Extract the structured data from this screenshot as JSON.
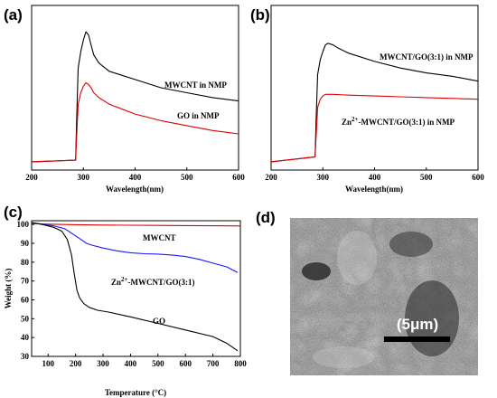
{
  "panel_labels": [
    "(a)",
    "(b)",
    "(c)",
    "(d)"
  ],
  "chart_data": [
    {
      "type": "line",
      "panel": "(a)",
      "xlabel": "Wavelength(nm)",
      "ylabel": "",
      "xlim": [
        200,
        600
      ],
      "ylim": [
        0,
        1
      ],
      "xticks": [
        200,
        300,
        400,
        500,
        600
      ],
      "grid": false,
      "series": [
        {
          "name": "MWCNT in NMP",
          "color": "#000000",
          "x": [
            200,
            285,
            287,
            290,
            295,
            300,
            305,
            310,
            315,
            320,
            330,
            350,
            400,
            450,
            500,
            550,
            600
          ],
          "y": [
            0.05,
            0.06,
            0.3,
            0.62,
            0.72,
            0.79,
            0.84,
            0.82,
            0.76,
            0.7,
            0.65,
            0.6,
            0.55,
            0.5,
            0.47,
            0.44,
            0.42
          ]
        },
        {
          "name": "GO in NMP",
          "color": "#e00000",
          "x": [
            200,
            285,
            287,
            290,
            295,
            300,
            305,
            310,
            315,
            320,
            330,
            350,
            400,
            450,
            500,
            550,
            600
          ],
          "y": [
            0.05,
            0.06,
            0.2,
            0.4,
            0.47,
            0.51,
            0.53,
            0.52,
            0.5,
            0.47,
            0.44,
            0.4,
            0.34,
            0.3,
            0.27,
            0.24,
            0.22
          ]
        }
      ],
      "annotations": [
        "MWCNT in NMP",
        "GO in NMP"
      ]
    },
    {
      "type": "line",
      "panel": "(b)",
      "xlabel": "Wavelength(nm)",
      "ylabel": "",
      "xlim": [
        200,
        600
      ],
      "ylim": [
        0,
        1
      ],
      "xticks": [
        200,
        300,
        400,
        500,
        600
      ],
      "grid": false,
      "series": [
        {
          "name": "MWCNT/GO(3:1) in NMP",
          "color": "#000000",
          "x": [
            200,
            285,
            287,
            290,
            295,
            300,
            305,
            310,
            320,
            330,
            350,
            400,
            450,
            500,
            550,
            600
          ],
          "y": [
            0.05,
            0.08,
            0.3,
            0.58,
            0.67,
            0.72,
            0.76,
            0.77,
            0.76,
            0.74,
            0.71,
            0.66,
            0.62,
            0.59,
            0.57,
            0.54
          ]
        },
        {
          "name": "Zn2+-MWCNT/GO(3:1) in NMP",
          "color": "#e00000",
          "x": [
            200,
            285,
            287,
            290,
            295,
            300,
            305,
            310,
            320,
            350,
            400,
            450,
            500,
            550,
            600
          ],
          "y": [
            0.05,
            0.08,
            0.2,
            0.38,
            0.43,
            0.45,
            0.46,
            0.46,
            0.46,
            0.455,
            0.45,
            0.445,
            0.44,
            0.435,
            0.43
          ]
        }
      ],
      "annotations": [
        "MWCNT/GO(3:1) in NMP",
        "Zn",
        "2+",
        "-MWCNT/GO(3:1) in NMP"
      ]
    },
    {
      "type": "line",
      "panel": "(c)",
      "xlabel": "Temperature (°C)",
      "ylabel": "Weight (%)",
      "xlim": [
        40,
        800
      ],
      "ylim": [
        30,
        102
      ],
      "xticks": [
        100,
        200,
        300,
        400,
        500,
        600,
        700,
        800
      ],
      "yticks": [
        30,
        40,
        50,
        60,
        70,
        80,
        90,
        100
      ],
      "grid": false,
      "series": [
        {
          "name": "MWCNT",
          "color": "#e00000",
          "x": [
            40,
            100,
            200,
            300,
            400,
            500,
            600,
            700,
            800
          ],
          "y": [
            100.5,
            100.2,
            99.9,
            99.7,
            99.6,
            99.5,
            99.4,
            99.3,
            99.2
          ]
        },
        {
          "name": "Zn2+-MWCNT/GO(3:1)",
          "color": "#1a1aff",
          "x": [
            40,
            80,
            120,
            160,
            200,
            220,
            240,
            260,
            300,
            350,
            400,
            450,
            500,
            550,
            600,
            650,
            700,
            750,
            790
          ],
          "y": [
            101,
            100,
            99.3,
            97.8,
            94,
            92,
            90,
            89,
            87.5,
            86,
            85,
            84.5,
            84.3,
            83.8,
            83,
            81.5,
            79.5,
            77.5,
            74.5
          ]
        },
        {
          "name": "GO",
          "color": "#000000",
          "x": [
            40,
            80,
            120,
            150,
            170,
            185,
            195,
            205,
            215,
            230,
            250,
            280,
            320,
            400,
            500,
            600,
            700,
            750,
            790
          ],
          "y": [
            101,
            100,
            98.5,
            96.5,
            92,
            84,
            74,
            65,
            61,
            58,
            56,
            54.5,
            53.5,
            51,
            47.5,
            44,
            40.5,
            37,
            33
          ]
        }
      ],
      "annotations": [
        "MWCNT",
        "Zn",
        "2+",
        "-MWCNT/GO(3:1)",
        "GO"
      ]
    }
  ],
  "sem_image": {
    "scale_label": "(5μm)"
  }
}
